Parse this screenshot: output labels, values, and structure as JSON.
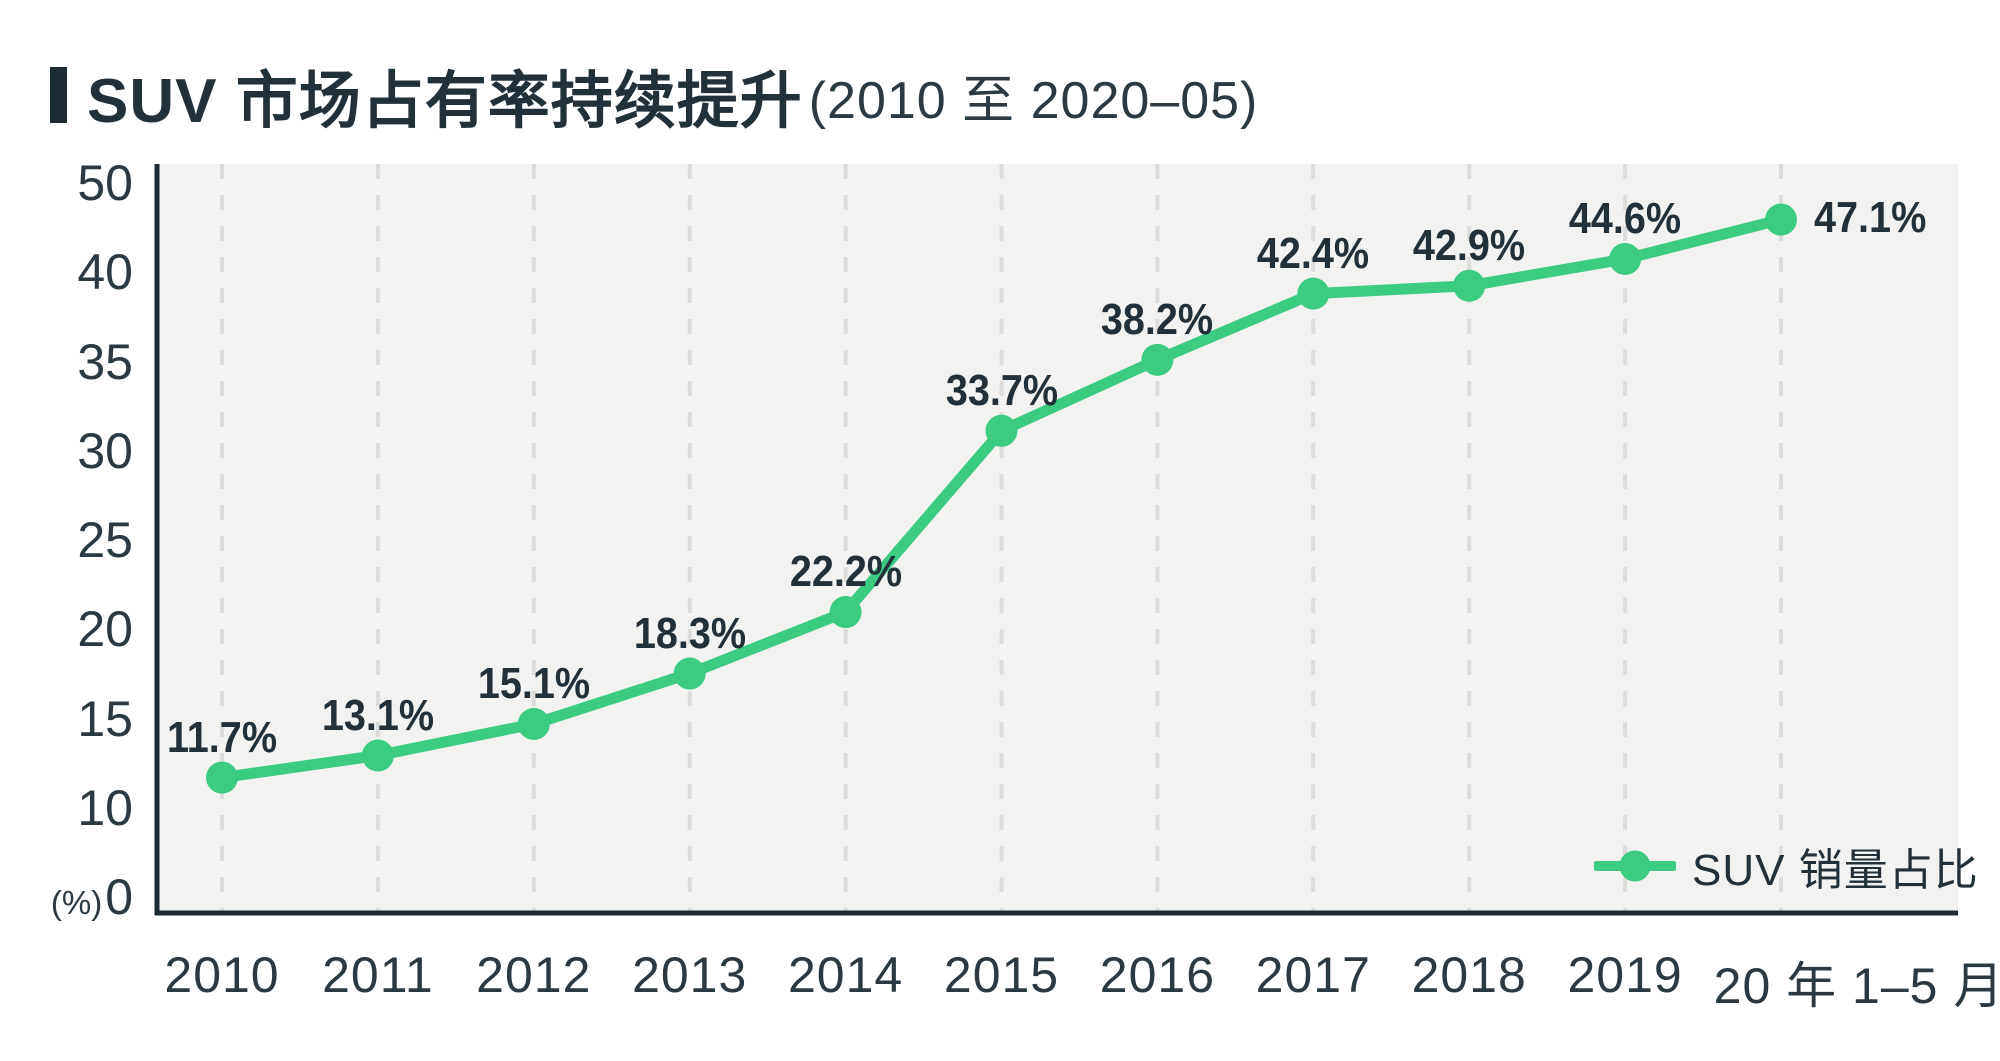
{
  "title": {
    "main": "SUV 市场占有率持续提升",
    "subtitle": "(2010 至 2020–05)"
  },
  "legend": {
    "label": "SUV 销量占比"
  },
  "colors": {
    "accent_green": "#3bcb83",
    "dark_ink": "#1d2b33",
    "tick_text": "#2b3942",
    "plot_background": "#f2f2f1",
    "gridline": "#dcdcda"
  },
  "chart_data": {
    "type": "line",
    "title": "SUV 市场占有率持续提升 (2010 至 2020–05)",
    "categories": [
      "2010",
      "2011",
      "2012",
      "2013",
      "2014",
      "2015",
      "2016",
      "2017",
      "2018",
      "2019",
      "20 年 1–5 月"
    ],
    "series": [
      {
        "name": "SUV 销量占比",
        "values": [
          11.7,
          13.1,
          15.1,
          18.3,
          22.2,
          33.7,
          38.2,
          42.4,
          42.9,
          44.6,
          47.1
        ]
      }
    ],
    "point_labels": [
      "11.7%",
      "13.1%",
      "15.1%",
      "18.3%",
      "22.2%",
      "33.7%",
      "38.2%",
      "42.4%",
      "42.9%",
      "44.6%",
      "47.1%"
    ],
    "yticks": [
      0,
      10,
      15,
      20,
      25,
      30,
      35,
      40,
      50
    ],
    "y_unit": "(%)",
    "grid": "vertical-dashed",
    "legend_position": "bottom-right",
    "ylim": [
      0,
      50
    ]
  }
}
